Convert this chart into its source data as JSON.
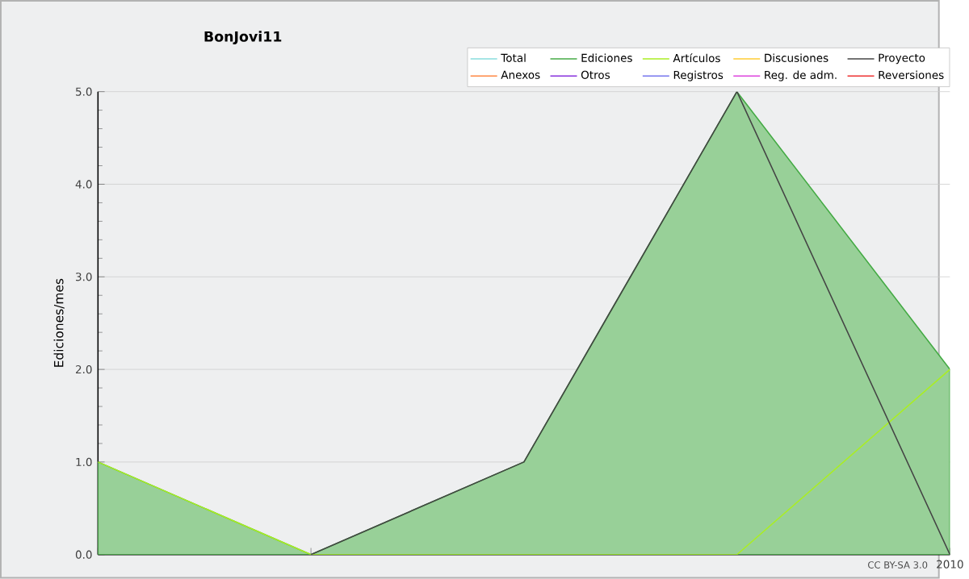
{
  "chart_data": {
    "type": "line",
    "title": "BonJovi11",
    "ylabel": "Ediciones/mes",
    "categories": [
      null,
      null,
      null,
      null,
      "2010"
    ],
    "ylim": [
      0,
      5
    ],
    "yticks": [
      {
        "value": 0,
        "label": "0.0"
      },
      {
        "value": 1,
        "label": "1.0"
      },
      {
        "value": 2,
        "label": "2.0"
      },
      {
        "value": 3,
        "label": "3.0"
      },
      {
        "value": 4,
        "label": "4.0"
      },
      {
        "value": 5,
        "label": "5.0"
      }
    ],
    "grid": "y",
    "legend": "top right",
    "marker": "none",
    "annotations": [
      "CC BY-SA 3.0"
    ],
    "series": [
      {
        "name": "Total",
        "color": "#88dddd",
        "values": [
          null,
          null,
          null,
          null,
          null
        ]
      },
      {
        "name": "Ediciones",
        "type": "area",
        "color": "#44aa44",
        "values": [
          1,
          0,
          1,
          5,
          2
        ]
      },
      {
        "name": "Artículos",
        "color": "#aaee22",
        "values": [
          1,
          0,
          0,
          0,
          2
        ]
      },
      {
        "name": "Discusiones",
        "color": "#ffcc33",
        "values": [
          null,
          null,
          null,
          null,
          null
        ]
      },
      {
        "name": "Proyecto",
        "color": "#444444",
        "values": [
          null,
          0,
          1,
          5,
          0
        ]
      },
      {
        "name": "Anexos",
        "color": "#ff8844",
        "values": [
          null,
          null,
          null,
          null,
          null
        ]
      },
      {
        "name": "Otros",
        "color": "#8833dd",
        "values": [
          null,
          null,
          null,
          null,
          null
        ]
      },
      {
        "name": "Registros",
        "color": "#7777ee",
        "values": [
          null,
          null,
          null,
          null,
          null
        ]
      },
      {
        "name": "Reg. de adm.",
        "color": "#dd44dd",
        "values": [
          null,
          null,
          null,
          null,
          null
        ]
      },
      {
        "name": "Reversiones",
        "color": "#ee3333",
        "values": [
          null,
          null,
          null,
          null,
          null
        ]
      }
    ]
  }
}
